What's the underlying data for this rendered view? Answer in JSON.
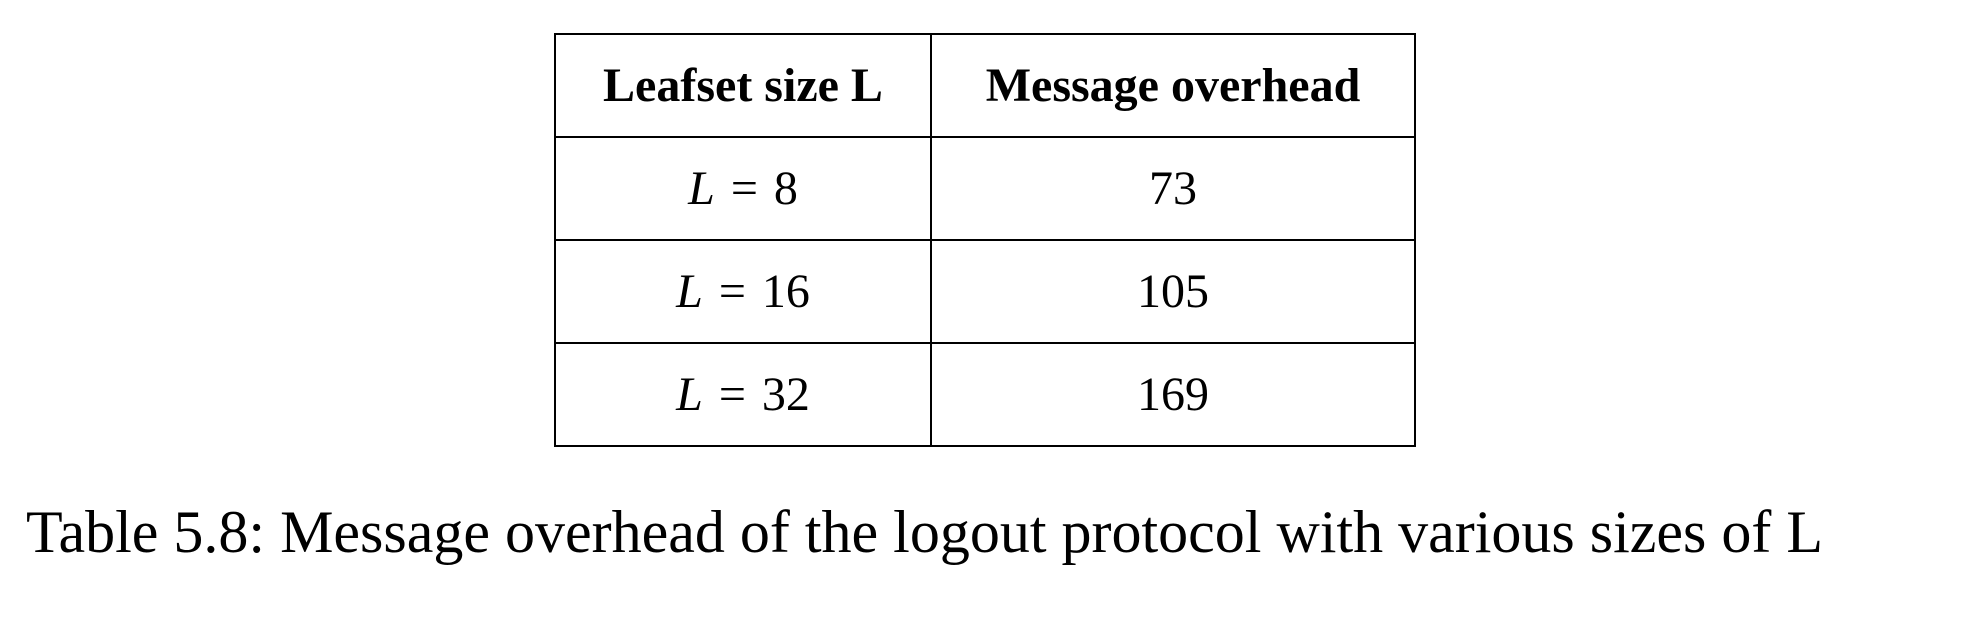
{
  "table": {
    "headers": [
      "Leafset size L",
      "Message overhead"
    ],
    "rows": [
      {
        "variable": "L",
        "operator": "=",
        "size": "8",
        "overhead": "73"
      },
      {
        "variable": "L",
        "operator": "=",
        "size": "16",
        "overhead": "105"
      },
      {
        "variable": "L",
        "operator": "=",
        "size": "32",
        "overhead": "169"
      }
    ]
  },
  "caption": "Table 5.8: Message overhead of the logout protocol with various sizes of L"
}
